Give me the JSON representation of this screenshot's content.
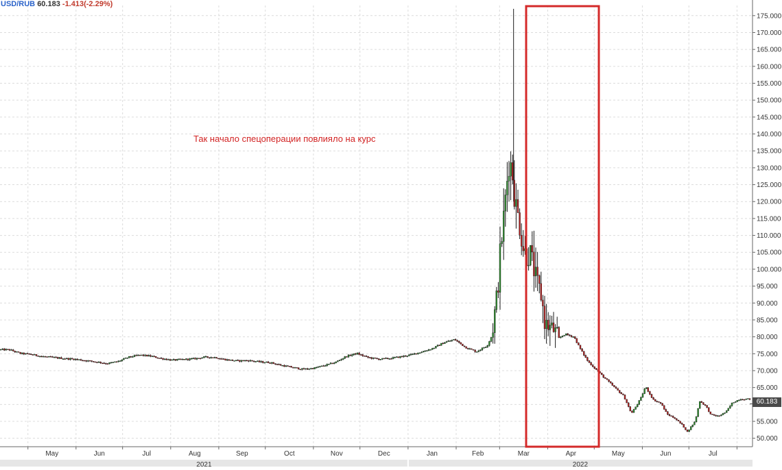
{
  "header": {
    "symbol": "USD/RUB",
    "last": "60.183",
    "change": "-1.413(-2.29%)"
  },
  "annotation": {
    "text": "Так начало спецоперации повлияло на курс",
    "color": "#d22222"
  },
  "price_badge": "60.183",
  "colors": {
    "up": "#2e8b2e",
    "down": "#b22222",
    "wick": "#1a1a1a",
    "grid": "#dcdcdc",
    "highlight_box": "#d42a2a",
    "axis_text": "#333333",
    "year_band": "#e6e6e6"
  },
  "chart_data": {
    "type": "candlestick",
    "title": "",
    "xlabel": "",
    "ylabel": "",
    "y_axis_side": "right",
    "ylim": [
      47.5,
      178
    ],
    "y_ticks": [
      "175.000",
      "170.000",
      "165.000",
      "160.000",
      "155.000",
      "150.000",
      "145.000",
      "140.000",
      "135.000",
      "130.000",
      "125.000",
      "120.000",
      "115.000",
      "110.000",
      "105.000",
      "100.000",
      "95.000",
      "90.000",
      "85.000",
      "80.000",
      "75.000",
      "70.000",
      "65.000",
      "60.000",
      "55.000",
      "50.000"
    ],
    "x_month_labels": [
      "May",
      "Jun",
      "Jul",
      "Aug",
      "Sep",
      "Oct",
      "Nov",
      "Dec",
      "Jan",
      "Feb",
      "Mar",
      "Apr",
      "May",
      "Jun",
      "Jul"
    ],
    "x_year_labels": [
      "2021",
      "2022"
    ],
    "grid": true,
    "last_value": 60.183,
    "highlight_period": {
      "from": "2022-02-24",
      "to": "2022-04-08",
      "label": "Так начало спецоперации повлияло на курс"
    },
    "series": [
      {
        "points": [
          [
            "2021-04-19",
            76.2
          ],
          [
            "2021-04-26",
            75.1
          ],
          [
            "2021-05-03",
            74.8
          ],
          [
            "2021-05-10",
            74.2
          ],
          [
            "2021-05-17",
            73.9
          ],
          [
            "2021-05-24",
            73.6
          ],
          [
            "2021-05-31",
            73.4
          ],
          [
            "2021-06-07",
            73.0
          ],
          [
            "2021-06-14",
            72.6
          ],
          [
            "2021-06-21",
            72.1
          ],
          [
            "2021-06-28",
            72.7
          ],
          [
            "2021-07-05",
            74.0
          ],
          [
            "2021-07-12",
            74.6
          ],
          [
            "2021-07-19",
            74.3
          ],
          [
            "2021-07-26",
            73.6
          ],
          [
            "2021-08-02",
            73.1
          ],
          [
            "2021-08-09",
            73.3
          ],
          [
            "2021-08-16",
            73.5
          ],
          [
            "2021-08-23",
            74.0
          ],
          [
            "2021-08-30",
            73.9
          ],
          [
            "2021-09-06",
            73.2
          ],
          [
            "2021-09-13",
            72.9
          ],
          [
            "2021-09-20",
            73.0
          ],
          [
            "2021-09-27",
            72.6
          ],
          [
            "2021-10-04",
            72.4
          ],
          [
            "2021-10-11",
            71.6
          ],
          [
            "2021-10-18",
            71.0
          ],
          [
            "2021-10-25",
            70.4
          ],
          [
            "2021-11-01",
            70.7
          ],
          [
            "2021-11-08",
            71.5
          ],
          [
            "2021-11-15",
            72.4
          ],
          [
            "2021-11-22",
            74.2
          ],
          [
            "2021-11-29",
            75.1
          ],
          [
            "2021-12-06",
            73.9
          ],
          [
            "2021-12-13",
            73.4
          ],
          [
            "2021-12-20",
            73.6
          ],
          [
            "2021-12-27",
            74.1
          ],
          [
            "2022-01-03",
            74.7
          ],
          [
            "2022-01-10",
            75.6
          ],
          [
            "2022-01-17",
            76.6
          ],
          [
            "2022-01-24",
            78.3
          ],
          [
            "2022-01-31",
            79.2
          ],
          [
            "2022-02-07",
            76.9
          ],
          [
            "2022-02-14",
            75.6
          ],
          [
            "2022-02-21",
            77.4
          ],
          [
            "2022-02-24",
            80.3
          ],
          [
            "2022-02-28",
            95.0
          ],
          [
            "2022-03-01",
            103.0
          ],
          [
            "2022-03-03",
            112.0
          ],
          [
            "2022-03-07",
            132.0
          ],
          [
            "2022-03-09",
            130.0
          ],
          [
            "2022-03-11",
            120.0
          ],
          [
            "2022-03-14",
            113.0
          ],
          [
            "2022-03-16",
            107.0
          ],
          [
            "2022-03-18",
            104.0
          ],
          [
            "2022-03-21",
            104.5
          ],
          [
            "2022-03-23",
            100.0
          ],
          [
            "2022-03-25",
            96.0
          ],
          [
            "2022-03-28",
            92.0
          ],
          [
            "2022-03-30",
            84.5
          ],
          [
            "2022-04-01",
            83.2
          ],
          [
            "2022-04-05",
            82.0
          ],
          [
            "2022-04-08",
            79.5
          ],
          [
            "2022-04-12",
            80.8
          ],
          [
            "2022-04-18",
            80.0
          ],
          [
            "2022-04-22",
            76.4
          ],
          [
            "2022-04-27",
            72.7
          ],
          [
            "2022-05-04",
            69.5
          ],
          [
            "2022-05-10",
            66.8
          ],
          [
            "2022-05-16",
            64.2
          ],
          [
            "2022-05-20",
            62.5
          ],
          [
            "2022-05-25",
            57.3
          ],
          [
            "2022-05-31",
            61.8
          ],
          [
            "2022-06-03",
            65.3
          ],
          [
            "2022-06-08",
            61.4
          ],
          [
            "2022-06-13",
            60.3
          ],
          [
            "2022-06-17",
            57.1
          ],
          [
            "2022-06-22",
            55.9
          ],
          [
            "2022-06-27",
            53.8
          ],
          [
            "2022-06-30",
            51.9
          ],
          [
            "2022-07-05",
            55.0
          ],
          [
            "2022-07-08",
            61.0
          ],
          [
            "2022-07-12",
            59.5
          ],
          [
            "2022-07-15",
            57.0
          ],
          [
            "2022-07-20",
            56.5
          ],
          [
            "2022-07-25",
            57.8
          ],
          [
            "2022-07-29",
            60.5
          ],
          [
            "2022-08-03",
            61.6
          ]
        ]
      }
    ]
  }
}
